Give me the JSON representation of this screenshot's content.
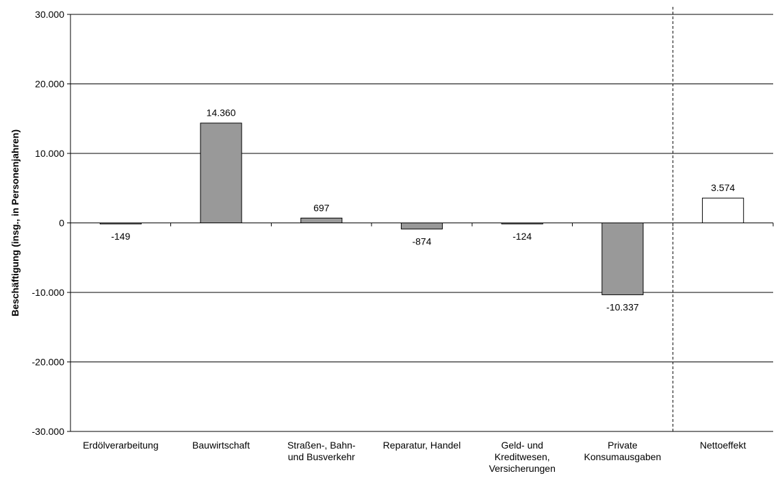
{
  "chart_data": {
    "type": "bar",
    "ylabel": "Beschäftigung (insg., in Personenjahren)",
    "xlabel": "",
    "ylim": [
      -30000,
      30000
    ],
    "ytick_values": [
      30000,
      20000,
      10000,
      0,
      -10000,
      -20000,
      -30000
    ],
    "ytick_labels": [
      "30.000",
      "20.000",
      "10.000",
      "0",
      "-10.000",
      "-20.000",
      "-30.000"
    ],
    "grid": true,
    "categories": [
      [
        "Erdölverarbeitung"
      ],
      [
        "Bauwirtschaft"
      ],
      [
        "Straßen-, Bahn-",
        "und Busverkehr"
      ],
      [
        "Reparatur, Handel"
      ],
      [
        "Geld- und",
        "Kreditwesen,",
        "Versicherungen"
      ],
      [
        "Private",
        "Konsumausgaben"
      ],
      [
        "Nettoeffekt"
      ]
    ],
    "values": [
      -149,
      14360,
      697,
      -874,
      -124,
      -10337,
      3574
    ],
    "value_labels": [
      "-149",
      "14.360",
      "697",
      "-874",
      "-124",
      "-10.337",
      "3.574"
    ],
    "bar_colors": [
      "#999999",
      "#999999",
      "#999999",
      "#999999",
      "#999999",
      "#999999",
      "#ffffff"
    ],
    "separator_before_category": 6
  }
}
